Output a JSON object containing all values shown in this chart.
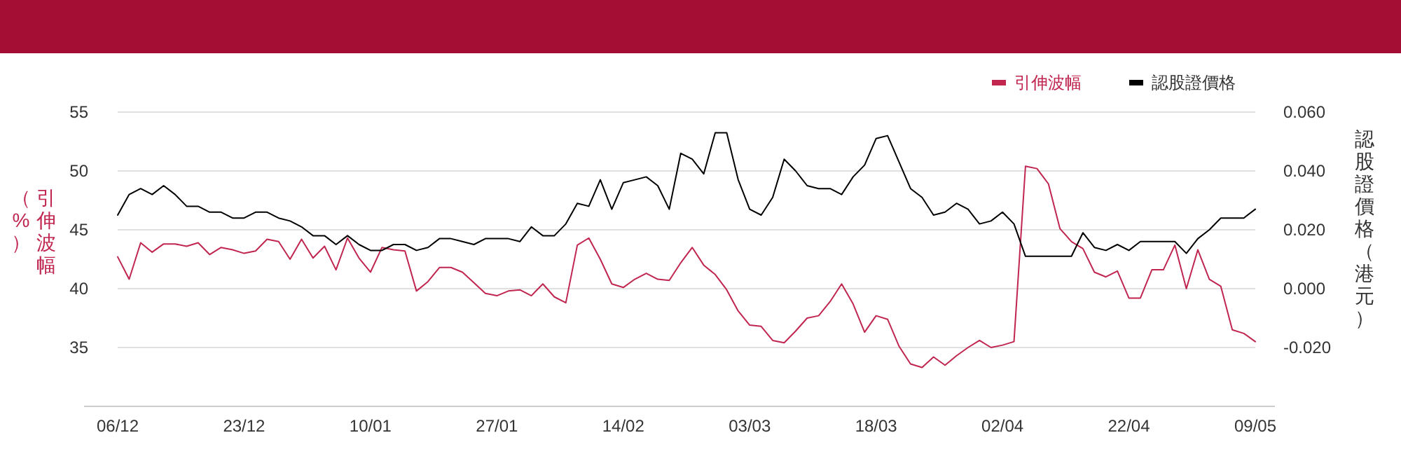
{
  "chart_data": {
    "type": "line",
    "categories": [
      "06/12",
      null,
      null,
      null,
      null,
      null,
      null,
      null,
      null,
      null,
      null,
      "23/12",
      null,
      null,
      null,
      null,
      null,
      null,
      null,
      null,
      null,
      null,
      "10/01",
      null,
      null,
      null,
      null,
      null,
      null,
      null,
      null,
      null,
      null,
      "27/01",
      null,
      null,
      null,
      null,
      null,
      null,
      null,
      null,
      null,
      null,
      "14/02",
      null,
      null,
      null,
      null,
      null,
      null,
      null,
      null,
      null,
      null,
      "03/03",
      null,
      null,
      null,
      null,
      null,
      null,
      null,
      null,
      null,
      null,
      "18/03",
      null,
      null,
      null,
      null,
      null,
      null,
      null,
      null,
      null,
      null,
      "02/04",
      null,
      null,
      null,
      null,
      null,
      null,
      null,
      null,
      null,
      null,
      "22/04",
      null,
      null,
      null,
      null,
      null,
      null,
      null,
      null,
      null,
      null,
      "09/05"
    ],
    "series": [
      {
        "name": "引伸波幅",
        "color": "#c0264f",
        "values": [
          42.7,
          40.8,
          43.9,
          43.1,
          43.8,
          43.8,
          43.6,
          43.9,
          42.9,
          43.5,
          43.3,
          43.0,
          43.2,
          44.2,
          44.0,
          42.5,
          44.2,
          42.6,
          43.6,
          41.6,
          44.3,
          42.6,
          41.4,
          43.5,
          43.3,
          43.2,
          39.8,
          40.6,
          41.8,
          41.8,
          41.4,
          40.5,
          39.6,
          39.4,
          39.8,
          39.9,
          39.4,
          40.4,
          39.3,
          38.8,
          43.7,
          44.3,
          42.5,
          40.4,
          40.1,
          40.8,
          41.3,
          40.8,
          40.7,
          42.2,
          43.5,
          42.0,
          41.2,
          39.9,
          38.1,
          36.9,
          36.8,
          35.6,
          35.4,
          36.4,
          37.5,
          37.7,
          38.9,
          40.4,
          38.7,
          36.3,
          37.7,
          37.4,
          35.1,
          33.6,
          33.3,
          34.2,
          33.5,
          34.3,
          35.0,
          35.6,
          35.0,
          35.2,
          35.5,
          50.4,
          50.2,
          48.9,
          45.1,
          44.0,
          43.4,
          41.4,
          41.0,
          41.5,
          39.2,
          39.2,
          41.6,
          41.6,
          43.7,
          40.0,
          43.3,
          40.8,
          40.2,
          36.5,
          36.2,
          35.5
        ]
      },
      {
        "name": "認股證價格",
        "color": "#000000",
        "axis": "y2",
        "values": [
          0.025,
          0.032,
          0.034,
          0.032,
          0.035,
          0.032,
          0.028,
          0.028,
          0.026,
          0.026,
          0.024,
          0.024,
          0.026,
          0.026,
          0.024,
          0.023,
          0.021,
          0.018,
          0.018,
          0.015,
          0.018,
          0.015,
          0.013,
          0.013,
          0.015,
          0.015,
          0.013,
          0.014,
          0.017,
          0.017,
          0.016,
          0.015,
          0.017,
          0.017,
          0.017,
          0.016,
          0.021,
          0.018,
          0.018,
          0.022,
          0.029,
          0.028,
          0.037,
          0.027,
          0.036,
          0.037,
          0.038,
          0.035,
          0.027,
          0.046,
          0.044,
          0.039,
          0.053,
          0.053,
          0.037,
          0.027,
          0.025,
          0.031,
          0.044,
          0.04,
          0.035,
          0.034,
          0.034,
          0.032,
          0.038,
          0.042,
          0.051,
          0.052,
          0.043,
          0.034,
          0.031,
          0.025,
          0.026,
          0.029,
          0.027,
          0.022,
          0.023,
          0.026,
          0.022,
          0.011,
          0.011,
          0.011,
          0.011,
          0.011,
          0.019,
          0.014,
          0.013,
          0.015,
          0.013,
          0.016,
          0.016,
          0.016,
          0.016,
          0.012,
          0.017,
          0.02,
          0.024,
          0.024,
          0.024,
          0.027
        ]
      }
    ],
    "ylabel": "引伸波幅（%）",
    "y2label": "認股證價格（港元）",
    "ylim": [
      30,
      55
    ],
    "yticks": [
      35,
      40,
      45,
      50,
      55
    ],
    "y2lim": [
      -0.04,
      0.06
    ],
    "y2ticks": [
      {
        "value": -0.02,
        "label": "-0.020"
      },
      {
        "value": 0,
        "label": "0.000"
      },
      {
        "value": 0.02,
        "label": "0.020"
      },
      {
        "value": 0.04,
        "label": "0.040"
      },
      {
        "value": 0.06,
        "label": "0.060"
      }
    ],
    "grid": "y",
    "legend": "top right",
    "marker": "none"
  }
}
